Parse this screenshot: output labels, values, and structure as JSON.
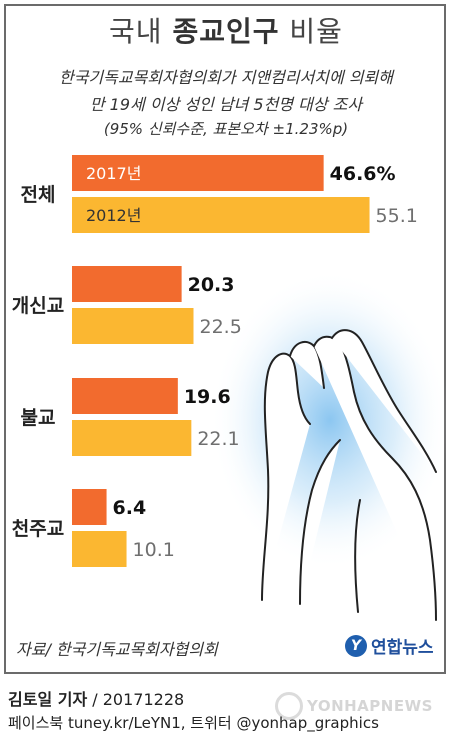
{
  "header": {
    "title_plain_left": "국내 ",
    "title_bold": "종교인구",
    "title_plain_right": " 비율",
    "subtitle_line1": "한국기독교목회자협의회가 지앤컴리서치에 의뢰해",
    "subtitle_line2": "만 19세 이상 성인 남녀 5천명 대상 조사",
    "subtitle_line3": "(95% 신뢰수준, 표본오차 ±1.23%p)"
  },
  "chart_data": {
    "type": "bar",
    "orientation": "horizontal",
    "categories": [
      "전체",
      "개신교",
      "불교",
      "천주교"
    ],
    "series": [
      {
        "name": "2017년",
        "values": [
          46.6,
          20.3,
          19.6,
          6.4
        ],
        "labels": [
          "46.6%",
          "20.3",
          "19.6",
          "6.4"
        ],
        "color": "#f26b2e"
      },
      {
        "name": "2012년",
        "values": [
          55.1,
          22.5,
          22.1,
          10.1
        ],
        "labels": [
          "55.1",
          "22.5",
          "22.1",
          "10.1"
        ],
        "color": "#fbb731"
      }
    ],
    "legend_position": "inside-first-bars",
    "grid": false
  },
  "footer": {
    "source": "자료/ 한국기독교목회자협의회",
    "logo_mark": "Y",
    "logo_text": "연합뉴스",
    "author_name": "김토일 기자",
    "author_date": " / 20171228",
    "sns": "페이스북 tuney.kr/LeYN1, 트위터 @yonhap_graphics",
    "watermark": "YONHAPNEWS"
  },
  "colors": {
    "bar_2017": "#f26b2e",
    "bar_2012": "#fbb731",
    "value_2017": "#111111",
    "value_2012": "#6f6f6f"
  }
}
